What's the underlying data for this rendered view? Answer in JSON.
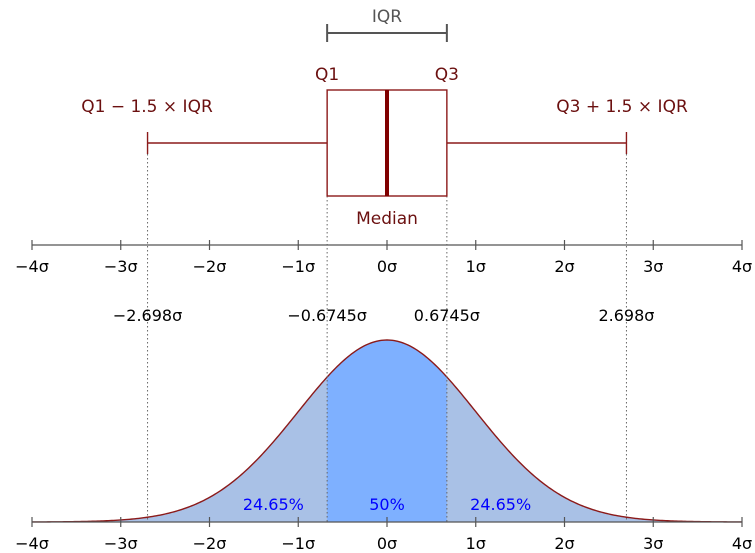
{
  "labels": {
    "iqr": "IQR",
    "q1": "Q1",
    "q3": "Q3",
    "median": "Median",
    "lower_fence": "Q1 − 1.5 × IQR",
    "upper_fence": "Q3 + 1.5 × IQR"
  },
  "sigma_ticks": [
    "−4σ",
    "−3σ",
    "−2σ",
    "−1σ",
    "0σ",
    "1σ",
    "2σ",
    "3σ",
    "4σ"
  ],
  "markers": [
    {
      "label": "−2.698σ",
      "sigma": -2.698
    },
    {
      "label": "−0.6745σ",
      "sigma": -0.6745
    },
    {
      "label": "0.6745σ",
      "sigma": 0.6745
    },
    {
      "label": "2.698σ",
      "sigma": 2.698
    }
  ],
  "percentages": {
    "left": "24.65%",
    "middle": "50%",
    "right": "24.65%"
  },
  "colors": {
    "box_stroke": "#8b1a1a",
    "median_line": "#800000",
    "curve": "#8b1a1a",
    "fill_center": "#7eb0ff",
    "fill_sides": "#a9c1e6",
    "iqr_bracket": "#555555",
    "percent_text": "#0000ff"
  },
  "chart_data": {
    "type": "area",
    "x_range": [
      -4,
      4
    ],
    "quartiles": {
      "q1": -0.6745,
      "median": 0,
      "q3": 0.6745
    },
    "whiskers": {
      "low": -2.698,
      "high": 2.698
    },
    "regions": [
      {
        "from": -2.698,
        "to": -0.6745,
        "percent": 24.65
      },
      {
        "from": -0.6745,
        "to": 0.6745,
        "percent": 50
      },
      {
        "from": 0.6745,
        "to": 2.698,
        "percent": 24.65
      }
    ]
  }
}
